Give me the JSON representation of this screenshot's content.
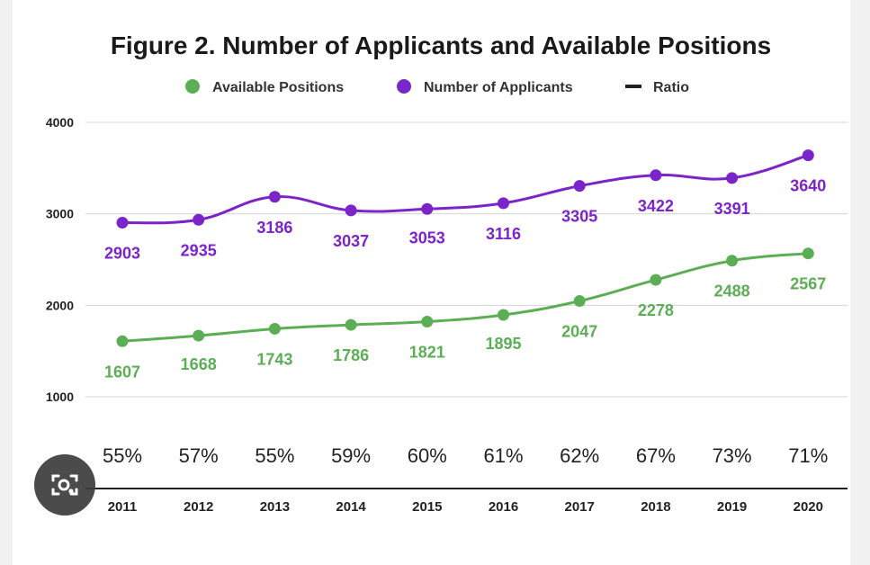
{
  "chart_data": {
    "type": "line",
    "title": "Figure 2. Number of Applicants and Available Positions",
    "categories": [
      "2011",
      "2012",
      "2013",
      "2014",
      "2015",
      "2016",
      "2017",
      "2018",
      "2019",
      "2020"
    ],
    "series": [
      {
        "name": "Available Positions",
        "color": "#5cae55",
        "values": [
          1607,
          1668,
          1743,
          1786,
          1821,
          1895,
          2047,
          2278,
          2488,
          2567
        ],
        "labels": [
          "1607",
          "1668",
          "1743",
          "1786",
          "1821",
          "1895",
          "2047",
          "2278",
          "2488",
          "2567"
        ]
      },
      {
        "name": "Number of Applicants",
        "color": "#7b24c9",
        "values": [
          2903,
          2935,
          3186,
          3037,
          3053,
          3116,
          3305,
          3422,
          3391,
          3640
        ],
        "labels": [
          "2903",
          "2935",
          "3186",
          "3037",
          "3053",
          "3116",
          "3305",
          "3422",
          "3391",
          "3640"
        ]
      },
      {
        "name": "Ratio",
        "color": "#222222",
        "labels": [
          "55%",
          "57%",
          "55%",
          "59%",
          "60%",
          "61%",
          "62%",
          "67%",
          "73%",
          "71%"
        ]
      }
    ],
    "y_ticks": [
      "1000",
      "2000",
      "3000",
      "4000"
    ],
    "ylim": [
      0,
      4000
    ],
    "grid": true,
    "legend_position": "top-center"
  },
  "overlay": {
    "lens_icon": "camera-search-icon",
    "lens_bg": "#3c3c3c"
  }
}
